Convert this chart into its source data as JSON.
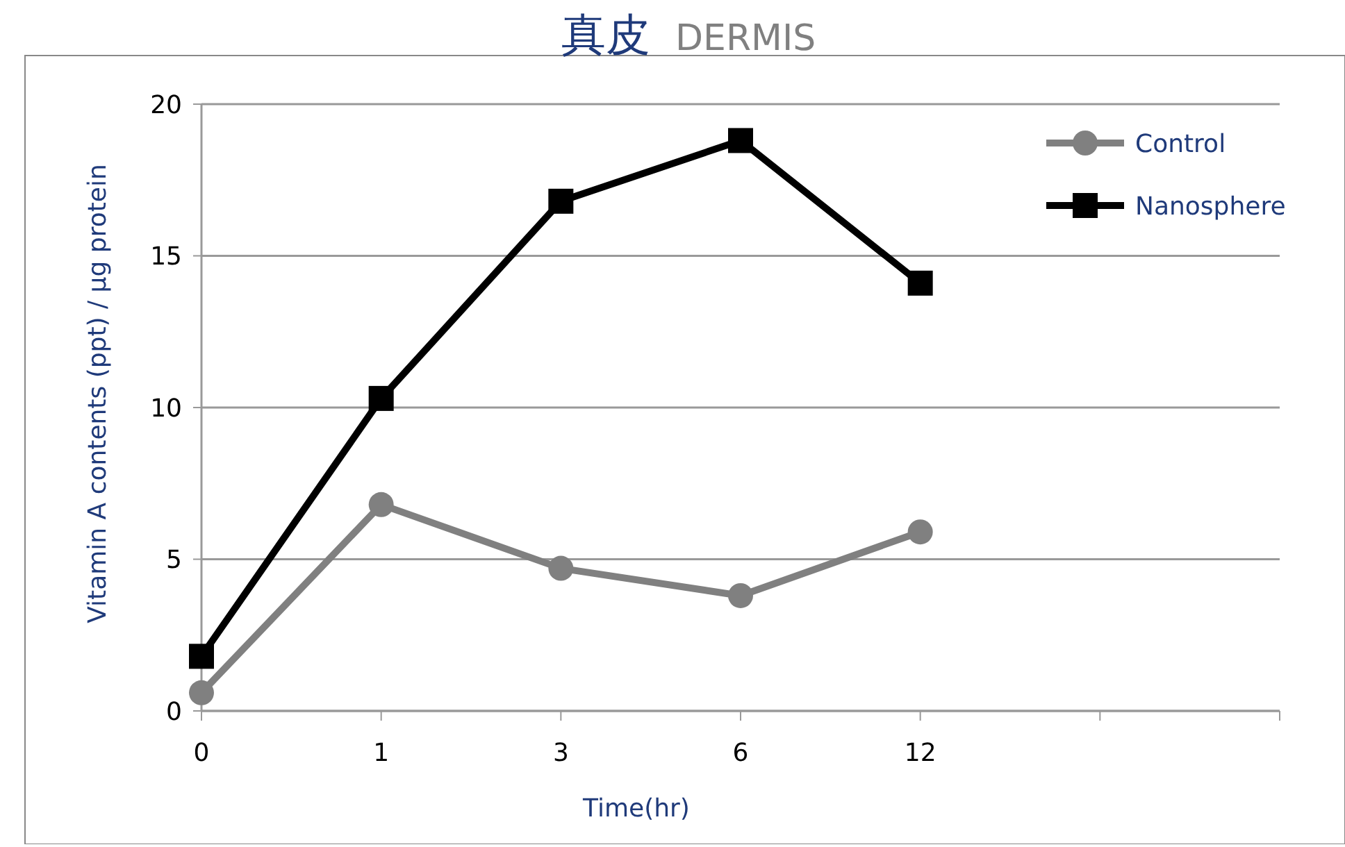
{
  "chart_data": {
    "type": "line",
    "title": "真皮",
    "subtitle": "DERMIS",
    "xlabel": "Time(hr)",
    "ylabel": "Vitamin A contents (ppt) / μg protein",
    "categories": [
      "0",
      "1",
      "3",
      "6",
      "12",
      null
    ],
    "series": [
      {
        "name": "Control",
        "color": "#808080",
        "marker": "circle",
        "values": [
          0.6,
          6.8,
          4.7,
          3.8,
          5.9,
          null
        ]
      },
      {
        "name": "Nanosphere",
        "color": "#000000",
        "marker": "square",
        "values": [
          1.8,
          10.3,
          16.8,
          18.8,
          14.1,
          null
        ]
      }
    ],
    "ylim": [
      0,
      20
    ],
    "yticks": [
      0,
      5,
      10,
      15,
      20
    ],
    "grid": "y",
    "legend": "top right"
  }
}
